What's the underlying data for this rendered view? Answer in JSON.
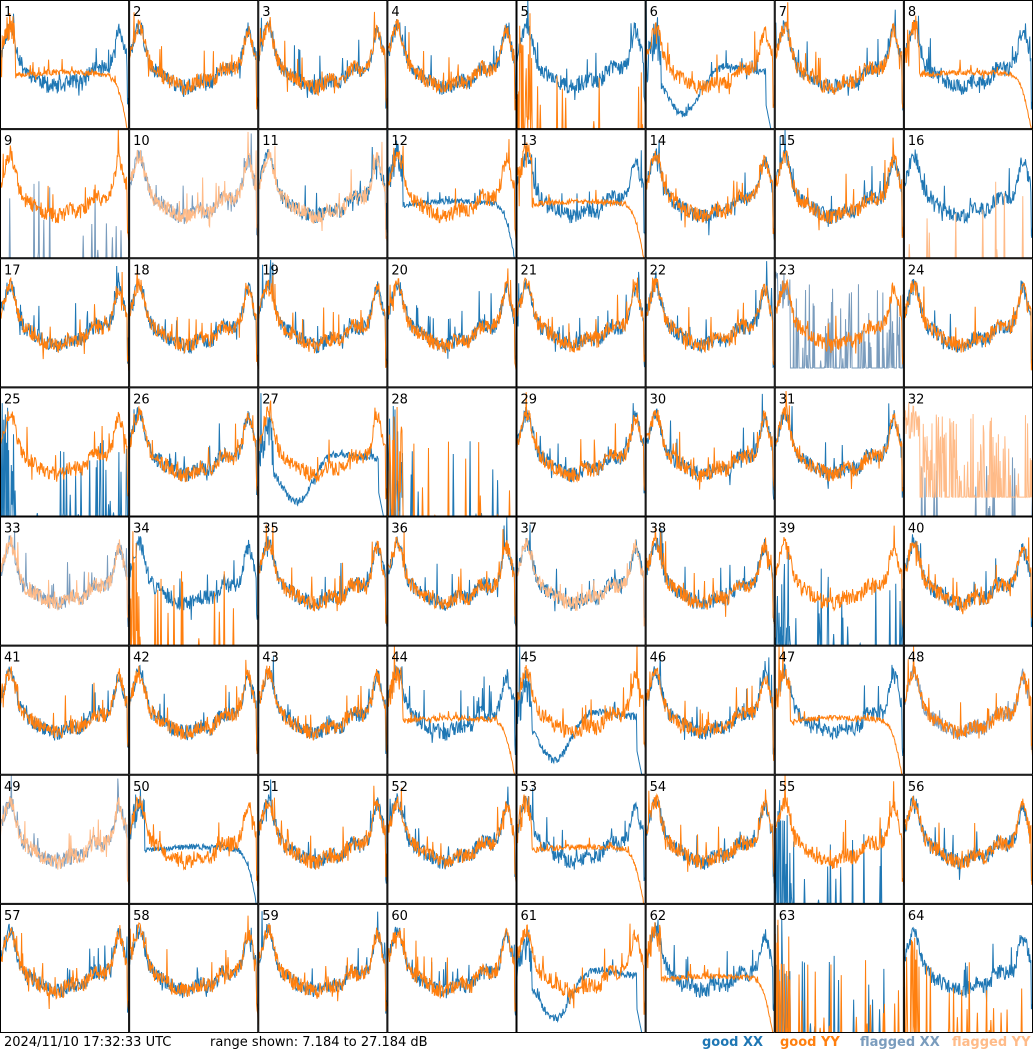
{
  "chart_data": {
    "type": "line",
    "panel_count": 64,
    "grid": {
      "columns": 8,
      "rows": 8
    },
    "panel_labels": [
      "1",
      "2",
      "3",
      "4",
      "5",
      "6",
      "7",
      "8",
      "9",
      "10",
      "11",
      "12",
      "13",
      "14",
      "15",
      "16",
      "17",
      "18",
      "19",
      "20",
      "21",
      "22",
      "23",
      "24",
      "25",
      "26",
      "27",
      "28",
      "29",
      "30",
      "31",
      "32",
      "33",
      "34",
      "35",
      "36",
      "37",
      "38",
      "39",
      "40",
      "41",
      "42",
      "43",
      "44",
      "45",
      "46",
      "47",
      "48",
      "49",
      "50",
      "51",
      "52",
      "53",
      "54",
      "55",
      "56",
      "57",
      "58",
      "59",
      "60",
      "61",
      "62",
      "63",
      "64"
    ],
    "ylim": [
      7.184,
      27.184
    ],
    "series": [
      {
        "name": "good XX",
        "color": "#1f77b4"
      },
      {
        "name": "good YY",
        "color": "#ff7f0e"
      },
      {
        "name": "flagged XX",
        "color": "#7a9cbd"
      },
      {
        "name": "flagged YY",
        "color": "#ffbb88"
      }
    ],
    "panel_profiles": {
      "1": {
        "xx": "normal",
        "yy": "rolloff"
      },
      "2": {
        "xx": "normal",
        "yy": "normal"
      },
      "3": {
        "xx": "normal",
        "yy": "normal"
      },
      "4": {
        "xx": "normal",
        "yy": "normal"
      },
      "5": {
        "xx": "normal",
        "yy": "dead"
      },
      "6": {
        "xx": "dip",
        "yy": "normal"
      },
      "7": {
        "xx": "normal",
        "yy": "normal"
      },
      "8": {
        "xx": "normal",
        "yy": "rolloff"
      },
      "9": {
        "xx": "flagged-dead",
        "yy": "normal"
      },
      "10": {
        "xx": "flagged-normal",
        "yy": "flagged-normal"
      },
      "11": {
        "xx": "normal",
        "yy": "flagged-normal"
      },
      "12": {
        "xx": "rolloff",
        "yy": "normal"
      },
      "13": {
        "xx": "normal",
        "yy": "rolloff"
      },
      "14": {
        "xx": "normal",
        "yy": "normal"
      },
      "15": {
        "xx": "normal",
        "yy": "normal"
      },
      "16": {
        "xx": "normal",
        "yy": "flagged-dead"
      },
      "17": {
        "xx": "normal",
        "yy": "normal"
      },
      "18": {
        "xx": "normal",
        "yy": "normal"
      },
      "19": {
        "xx": "normal",
        "yy": "normal"
      },
      "20": {
        "xx": "normal",
        "yy": "normal"
      },
      "21": {
        "xx": "normal",
        "yy": "normal"
      },
      "22": {
        "xx": "normal",
        "yy": "normal"
      },
      "23": {
        "xx": "flagged-noisy",
        "yy": "normal"
      },
      "24": {
        "xx": "normal",
        "yy": "normal"
      },
      "25": {
        "xx": "dead",
        "yy": "normal"
      },
      "26": {
        "xx": "normal",
        "yy": "normal"
      },
      "27": {
        "xx": "dip",
        "yy": "normal"
      },
      "28": {
        "xx": "dead",
        "yy": "dead"
      },
      "29": {
        "xx": "normal",
        "yy": "normal"
      },
      "30": {
        "xx": "normal",
        "yy": "normal"
      },
      "31": {
        "xx": "normal",
        "yy": "normal"
      },
      "32": {
        "xx": "flagged-dead",
        "yy": "flagged-noisy"
      },
      "33": {
        "xx": "flagged-normal",
        "yy": "flagged-normal"
      },
      "34": {
        "xx": "normal",
        "yy": "dead"
      },
      "35": {
        "xx": "normal",
        "yy": "normal"
      },
      "36": {
        "xx": "normal",
        "yy": "normal"
      },
      "37": {
        "xx": "normal",
        "yy": "flagged-normal"
      },
      "38": {
        "xx": "normal",
        "yy": "normal"
      },
      "39": {
        "xx": "dead",
        "yy": "normal"
      },
      "40": {
        "xx": "normal",
        "yy": "normal"
      },
      "41": {
        "xx": "normal",
        "yy": "normal"
      },
      "42": {
        "xx": "normal",
        "yy": "normal"
      },
      "43": {
        "xx": "normal",
        "yy": "normal"
      },
      "44": {
        "xx": "normal",
        "yy": "rolloff"
      },
      "45": {
        "xx": "dip",
        "yy": "normal"
      },
      "46": {
        "xx": "normal",
        "yy": "normal"
      },
      "47": {
        "xx": "normal",
        "yy": "rolloff"
      },
      "48": {
        "xx": "flagged-normal",
        "yy": "normal"
      },
      "49": {
        "xx": "flagged-normal",
        "yy": "flagged-normal"
      },
      "50": {
        "xx": "rolloff",
        "yy": "normal"
      },
      "51": {
        "xx": "normal",
        "yy": "normal"
      },
      "52": {
        "xx": "normal",
        "yy": "normal"
      },
      "53": {
        "xx": "normal",
        "yy": "rolloff"
      },
      "54": {
        "xx": "normal",
        "yy": "normal"
      },
      "55": {
        "xx": "dead",
        "yy": "normal"
      },
      "56": {
        "xx": "normal",
        "yy": "normal"
      },
      "57": {
        "xx": "normal",
        "yy": "normal"
      },
      "58": {
        "xx": "normal",
        "yy": "normal"
      },
      "59": {
        "xx": "normal",
        "yy": "normal"
      },
      "60": {
        "xx": "normal",
        "yy": "normal"
      },
      "61": {
        "xx": "dip",
        "yy": "normal"
      },
      "62": {
        "xx": "normal",
        "yy": "rolloff"
      },
      "63": {
        "xx": "dead",
        "yy": "dead"
      },
      "64": {
        "xx": "normal",
        "yy": "dead"
      }
    }
  },
  "footer": {
    "timestamp": "2024/11/10 17:32:33 UTC",
    "range": "range shown: 7.184 to 27.184 dB",
    "legend": [
      {
        "label": "good XX",
        "color": "#1f77b4"
      },
      {
        "label": "good YY",
        "color": "#ff7f0e"
      },
      {
        "label": "flagged XX",
        "color": "#7a9cbd"
      },
      {
        "label": "flagged YY",
        "color": "#ffbb88"
      }
    ]
  }
}
